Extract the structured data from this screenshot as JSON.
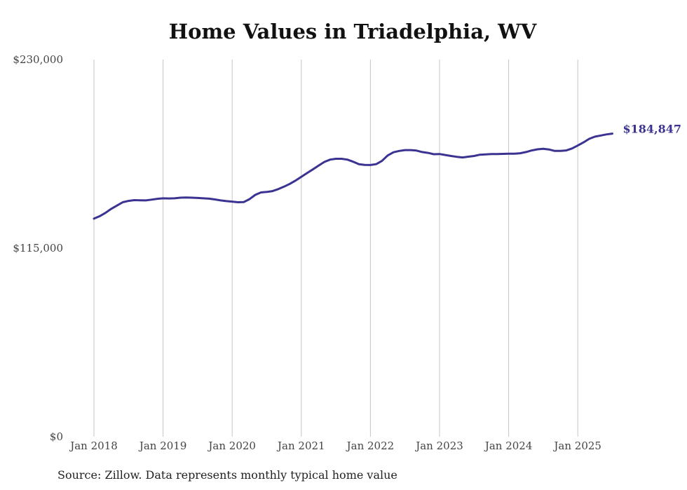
{
  "chart_data": {
    "type": "line",
    "title": "Home Values in Triadelphia, WV",
    "source": "Source: Zillow. Data represents monthly typical home value",
    "y_ticks": [
      "$0",
      "$115,000",
      "$230,000"
    ],
    "x_ticks": [
      "Jan 2018",
      "Jan 2019",
      "Jan 2020",
      "Jan 2021",
      "Jan 2022",
      "Jan 2023",
      "Jan 2024",
      "Jan 2025"
    ],
    "ylim": [
      0,
      230000
    ],
    "grid": "vertical",
    "line_color": "#3b3391",
    "end_label": "$184,847",
    "series": [
      {
        "x": [
          "2018-01",
          "2018-02",
          "2018-03",
          "2018-04",
          "2018-05",
          "2018-06",
          "2018-07",
          "2018-08",
          "2018-09",
          "2018-10",
          "2018-11",
          "2018-12",
          "2019-01",
          "2019-02",
          "2019-03",
          "2019-04",
          "2019-05",
          "2019-06",
          "2019-07",
          "2019-08",
          "2019-09",
          "2019-10",
          "2019-11",
          "2019-12",
          "2020-01",
          "2020-02",
          "2020-03",
          "2020-04",
          "2020-05",
          "2020-06",
          "2020-07",
          "2020-08",
          "2020-09",
          "2020-10",
          "2020-11",
          "2020-12",
          "2021-01",
          "2021-02",
          "2021-03",
          "2021-04",
          "2021-05",
          "2021-06",
          "2021-07",
          "2021-08",
          "2021-09",
          "2021-10",
          "2021-11",
          "2021-12",
          "2022-01",
          "2022-02",
          "2022-03",
          "2022-04",
          "2022-05",
          "2022-06",
          "2022-07",
          "2022-08",
          "2022-09",
          "2022-10",
          "2022-11",
          "2022-12",
          "2023-01",
          "2023-02",
          "2023-03",
          "2023-04",
          "2023-05",
          "2023-06",
          "2023-07",
          "2023-08",
          "2023-09",
          "2023-10",
          "2023-11",
          "2023-12",
          "2024-01",
          "2024-02",
          "2024-03",
          "2024-04",
          "2024-05",
          "2024-06",
          "2024-07",
          "2024-08",
          "2024-09",
          "2024-10",
          "2024-11",
          "2024-12",
          "2025-01",
          "2025-02",
          "2025-03",
          "2025-04",
          "2025-05",
          "2025-06",
          "2025-07"
        ],
        "values": [
          133000,
          134500,
          136500,
          139000,
          141000,
          143000,
          143800,
          144300,
          144200,
          144100,
          144600,
          145100,
          145400,
          145300,
          145400,
          145800,
          145900,
          145800,
          145600,
          145400,
          145200,
          144700,
          144100,
          143700,
          143400,
          143000,
          143100,
          144900,
          147500,
          149000,
          149300,
          149800,
          151000,
          152500,
          154200,
          156200,
          158500,
          160800,
          163000,
          165300,
          167600,
          169000,
          169500,
          169500,
          169000,
          167700,
          166200,
          165800,
          165700,
          166200,
          168200,
          171500,
          173500,
          174300,
          174800,
          174800,
          174500,
          173600,
          173100,
          172300,
          172400,
          171800,
          171200,
          170700,
          170300,
          170800,
          171200,
          172000,
          172200,
          172400,
          172400,
          172500,
          172600,
          172600,
          172900,
          173600,
          174600,
          175300,
          175600,
          175200,
          174300,
          174300,
          174600,
          175800,
          177600,
          179500,
          181700,
          183000,
          183700,
          184400,
          184847
        ]
      }
    ]
  }
}
